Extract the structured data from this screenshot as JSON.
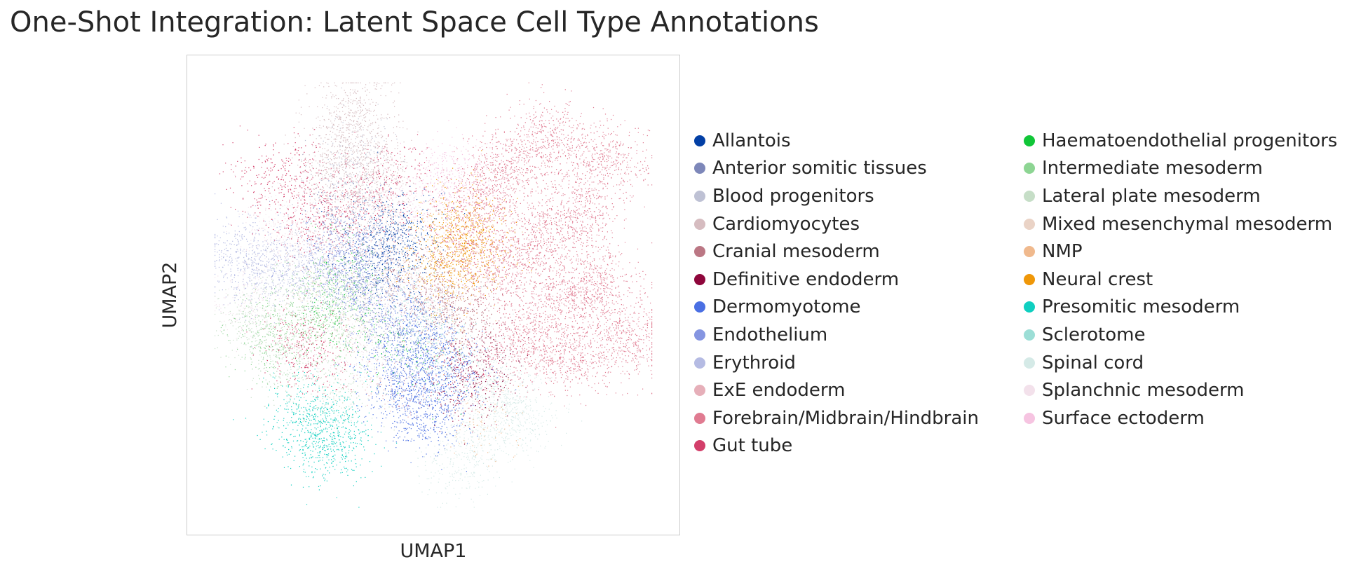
{
  "title": "One-Shot Integration: Latent Space Cell Type Annotations",
  "chart_data": {
    "type": "scatter",
    "title": "One-Shot Integration: Latent Space Cell Type Annotations",
    "xlabel": "UMAP1",
    "ylabel": "UMAP2",
    "xticks": [],
    "yticks": [],
    "grid": false,
    "legend_placement": "right",
    "legend_columns": 2,
    "categories": [
      {
        "name": "Allantois",
        "color": "#023fa5"
      },
      {
        "name": "Anterior somitic tissues",
        "color": "#7d87b9"
      },
      {
        "name": "Blood progenitors",
        "color": "#bec1d4"
      },
      {
        "name": "Cardiomyocytes",
        "color": "#d6bcc0"
      },
      {
        "name": "Cranial mesoderm",
        "color": "#bb7784"
      },
      {
        "name": "Definitive endoderm",
        "color": "#8e063b"
      },
      {
        "name": "Dermomyotome",
        "color": "#4a6fe3"
      },
      {
        "name": "Endothelium",
        "color": "#8595e1"
      },
      {
        "name": "Erythroid",
        "color": "#b5bbe3"
      },
      {
        "name": "ExE endoderm",
        "color": "#e6afb9"
      },
      {
        "name": "Forebrain/Midbrain/Hindbrain",
        "color": "#e07b91"
      },
      {
        "name": "Gut tube",
        "color": "#d33f6a"
      },
      {
        "name": "Haematoendothelial progenitors",
        "color": "#11c638"
      },
      {
        "name": "Intermediate mesoderm",
        "color": "#8dd593"
      },
      {
        "name": "Lateral plate mesoderm",
        "color": "#c6dec7"
      },
      {
        "name": "Mixed mesenchymal mesoderm",
        "color": "#ead3c6"
      },
      {
        "name": "NMP",
        "color": "#f0b98d"
      },
      {
        "name": "Neural crest",
        "color": "#ef9708"
      },
      {
        "name": "Presomitic mesoderm",
        "color": "#0fcfc0"
      },
      {
        "name": "Sclerotome",
        "color": "#9cded6"
      },
      {
        "name": "Spinal cord",
        "color": "#d5eae7"
      },
      {
        "name": "Splanchnic mesoderm",
        "color": "#f3e1eb"
      },
      {
        "name": "Surface ectoderm",
        "color": "#f6c4e1"
      }
    ],
    "clusters": [
      {
        "category": "Forebrain/Midbrain/Hindbrain",
        "points": [
          [
            0.72,
            0.62
          ],
          [
            0.66,
            0.78
          ],
          [
            0.82,
            0.68
          ],
          [
            0.78,
            0.5
          ],
          [
            0.7,
            0.4
          ],
          [
            0.86,
            0.52
          ],
          [
            0.6,
            0.7
          ],
          [
            0.75,
            0.85
          ],
          [
            0.88,
            0.8
          ],
          [
            0.64,
            0.55
          ],
          [
            0.92,
            0.4
          ],
          [
            0.8,
            0.36
          ]
        ],
        "n": 5200
      },
      {
        "category": "Cardiomyocytes",
        "points": [
          [
            0.3,
            0.86
          ],
          [
            0.33,
            0.92
          ],
          [
            0.36,
            0.8
          ],
          [
            0.28,
            0.76
          ],
          [
            0.38,
            0.72
          ]
        ],
        "n": 1300
      },
      {
        "category": "Gut tube",
        "points": [
          [
            0.13,
            0.74
          ],
          [
            0.2,
            0.78
          ],
          [
            0.28,
            0.7
          ],
          [
            0.36,
            0.72
          ],
          [
            0.23,
            0.66
          ],
          [
            0.21,
            0.4
          ],
          [
            0.24,
            0.36
          ],
          [
            0.59,
            0.32
          ],
          [
            0.55,
            0.62
          ],
          [
            0.41,
            0.77
          ]
        ],
        "n": 1500
      },
      {
        "category": "Allantois",
        "points": [
          [
            0.4,
            0.62
          ],
          [
            0.43,
            0.65
          ],
          [
            0.37,
            0.58
          ],
          [
            0.42,
            0.58
          ]
        ],
        "n": 600
      },
      {
        "category": "Neural crest",
        "points": [
          [
            0.54,
            0.62
          ],
          [
            0.57,
            0.68
          ],
          [
            0.52,
            0.58
          ],
          [
            0.56,
            0.56
          ],
          [
            0.6,
            0.62
          ]
        ],
        "n": 900
      },
      {
        "category": "Erythroid",
        "points": [
          [
            0.1,
            0.57
          ],
          [
            0.15,
            0.55
          ],
          [
            0.2,
            0.58
          ],
          [
            0.25,
            0.55
          ],
          [
            0.08,
            0.6
          ]
        ],
        "n": 900
      },
      {
        "category": "Intermediate mesoderm",
        "points": [
          [
            0.18,
            0.44
          ],
          [
            0.24,
            0.48
          ],
          [
            0.3,
            0.5
          ],
          [
            0.14,
            0.38
          ],
          [
            0.28,
            0.42
          ]
        ],
        "n": 900
      },
      {
        "category": "Dermomyotome",
        "points": [
          [
            0.42,
            0.34
          ],
          [
            0.45,
            0.28
          ],
          [
            0.48,
            0.22
          ],
          [
            0.5,
            0.38
          ],
          [
            0.44,
            0.44
          ],
          [
            0.53,
            0.3
          ]
        ],
        "n": 1700
      },
      {
        "category": "Endothelium",
        "points": [
          [
            0.28,
            0.58
          ],
          [
            0.32,
            0.52
          ],
          [
            0.36,
            0.5
          ],
          [
            0.34,
            0.62
          ]
        ],
        "n": 800
      },
      {
        "category": "Presomitic mesoderm",
        "points": [
          [
            0.22,
            0.2
          ],
          [
            0.26,
            0.16
          ],
          [
            0.24,
            0.24
          ],
          [
            0.29,
            0.18
          ]
        ],
        "n": 800
      },
      {
        "category": "Spinal cord",
        "points": [
          [
            0.6,
            0.2
          ],
          [
            0.65,
            0.26
          ],
          [
            0.56,
            0.12
          ],
          [
            0.7,
            0.22
          ],
          [
            0.63,
            0.32
          ]
        ],
        "n": 1100
      },
      {
        "category": "Splanchnic mesoderm",
        "points": [
          [
            0.16,
            0.65
          ],
          [
            0.1,
            0.48
          ],
          [
            0.32,
            0.4
          ],
          [
            0.4,
            0.5
          ],
          [
            0.5,
            0.48
          ],
          [
            0.38,
            0.66
          ]
        ],
        "n": 1400
      },
      {
        "category": "Cranial mesoderm",
        "points": [
          [
            0.5,
            0.5
          ],
          [
            0.54,
            0.46
          ],
          [
            0.58,
            0.44
          ],
          [
            0.47,
            0.54
          ]
        ],
        "n": 700
      },
      {
        "category": "Surface ectoderm",
        "points": [
          [
            0.52,
            0.75
          ],
          [
            0.56,
            0.78
          ],
          [
            0.49,
            0.71
          ]
        ],
        "n": 450
      },
      {
        "category": "Lateral plate mesoderm",
        "points": [
          [
            0.14,
            0.4
          ],
          [
            0.2,
            0.32
          ],
          [
            0.3,
            0.28
          ],
          [
            0.1,
            0.45
          ]
        ],
        "n": 650
      },
      {
        "category": "Definitive endoderm",
        "points": [
          [
            0.59,
            0.32
          ],
          [
            0.57,
            0.28
          ],
          [
            0.61,
            0.36
          ]
        ],
        "n": 300
      },
      {
        "category": "Anterior somitic tissues",
        "points": [
          [
            0.3,
            0.68
          ],
          [
            0.34,
            0.56
          ],
          [
            0.44,
            0.4
          ],
          [
            0.38,
            0.46
          ]
        ],
        "n": 500
      },
      {
        "category": "Sclerotome",
        "points": [
          [
            0.44,
            0.48
          ],
          [
            0.48,
            0.42
          ],
          [
            0.52,
            0.36
          ]
        ],
        "n": 400
      },
      {
        "category": "Mixed mesenchymal mesoderm",
        "points": [
          [
            0.24,
            0.52
          ],
          [
            0.33,
            0.46
          ],
          [
            0.4,
            0.56
          ]
        ],
        "n": 400
      },
      {
        "category": "Haematoendothelial progenitors",
        "points": [
          [
            0.26,
            0.46
          ],
          [
            0.36,
            0.42
          ],
          [
            0.46,
            0.36
          ],
          [
            0.3,
            0.56
          ]
        ],
        "n": 250
      },
      {
        "category": "Blood progenitors",
        "points": [
          [
            0.34,
            0.82
          ],
          [
            0.3,
            0.74
          ],
          [
            0.18,
            0.56
          ]
        ],
        "n": 350
      },
      {
        "category": "ExE endoderm",
        "points": [
          [
            0.32,
            0.66
          ],
          [
            0.26,
            0.62
          ],
          [
            0.4,
            0.3
          ]
        ],
        "n": 350
      },
      {
        "category": "NMP",
        "points": [
          [
            0.58,
            0.58
          ],
          [
            0.52,
            0.4
          ],
          [
            0.62,
            0.22
          ]
        ],
        "n": 250
      }
    ]
  }
}
